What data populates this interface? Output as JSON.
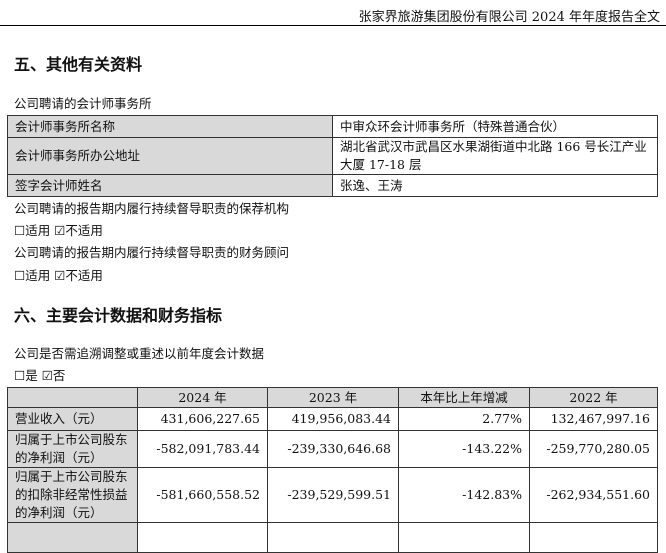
{
  "header": {
    "title": "张家界旅游集团股份有限公司 2024 年年度报告全文"
  },
  "section5": {
    "title": "五、其他有关资料",
    "intro": "公司聘请的会计师事务所",
    "rows": [
      {
        "label": "会计师事务所名称",
        "value": "中审众环会计师事务所（特殊普通合伙）"
      },
      {
        "label": "会计师事务所办公地址",
        "value": "湖北省武汉市武昌区水果湖街道中北路 166 号长江产业大厦 17-18 层"
      },
      {
        "label": "签字会计师姓名",
        "value": "张逸、王涛"
      }
    ],
    "sponsor_text": "公司聘请的报告期内履行持续督导职责的保荐机构",
    "sponsor_options": "☐适用 ☑不适用",
    "advisor_text": "公司聘请的报告期内履行持续督导职责的财务顾问",
    "advisor_options": "☐适用 ☑不适用"
  },
  "section6": {
    "title": "六、主要会计数据和财务指标",
    "question": "公司是否需追溯调整或重述以前年度会计数据",
    "options": "☐是 ☑否",
    "columns": [
      "",
      "2024 年",
      "2023 年",
      "本年比上年增减",
      "2022 年"
    ],
    "rows": [
      {
        "label": "营业收入（元）",
        "values": [
          "431,606,227.65",
          "419,956,083.44",
          "2.77%",
          "132,467,997.16"
        ]
      },
      {
        "label": "归属于上市公司股东的净利润（元）",
        "values": [
          "-582,091,783.44",
          "-239,330,646.68",
          "-143.22%",
          "-259,770,280.05"
        ]
      },
      {
        "label": "归属于上市公司股东的扣除非经常性损益的净利润（元）",
        "values": [
          "-581,660,558.52",
          "-239,529,599.51",
          "-142.83%",
          "-262,934,551.60"
        ]
      }
    ]
  }
}
